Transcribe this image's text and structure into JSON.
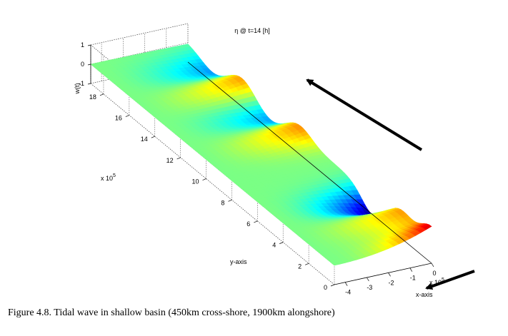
{
  "caption": "Figure 4.8. Tidal wave in shallow basin (450km cross-shore, 1900km alongshore)",
  "chart_data": {
    "type": "surface",
    "title": "η @ t=14 [h]",
    "xlabel": "x-axis",
    "ylabel": "y-axis",
    "zlabel": "w(t)",
    "x_exponent": "x 10",
    "x_exponent_power": "5",
    "y_exponent": "x 10",
    "y_exponent_power": "5",
    "xlim": [
      -4.5,
      0
    ],
    "ylim": [
      0,
      19
    ],
    "zlim": [
      -1,
      1
    ],
    "x_ticks": [
      -4,
      -3,
      -2,
      -1,
      0
    ],
    "y_ticks": [
      0,
      2,
      4,
      6,
      8,
      10,
      12,
      14,
      16,
      18
    ],
    "z_ticks": [
      -1,
      0,
      1
    ],
    "surface_amplitude_at_open_end": 0.9,
    "wave_crests_y": [
      2.5,
      10.3,
      14.8
    ],
    "wave_troughs_y": [
      4.5,
      12.5,
      17.0
    ],
    "colormap": [
      "#00008f",
      "#0000ff",
      "#00ffff",
      "#ffff00",
      "#ff0000",
      "#800000"
    ],
    "grid": true,
    "arrows": [
      {
        "name": "propagation-arrow",
        "direction": "toward y max"
      },
      {
        "name": "incoming-arrow",
        "direction": "toward x min"
      }
    ]
  }
}
